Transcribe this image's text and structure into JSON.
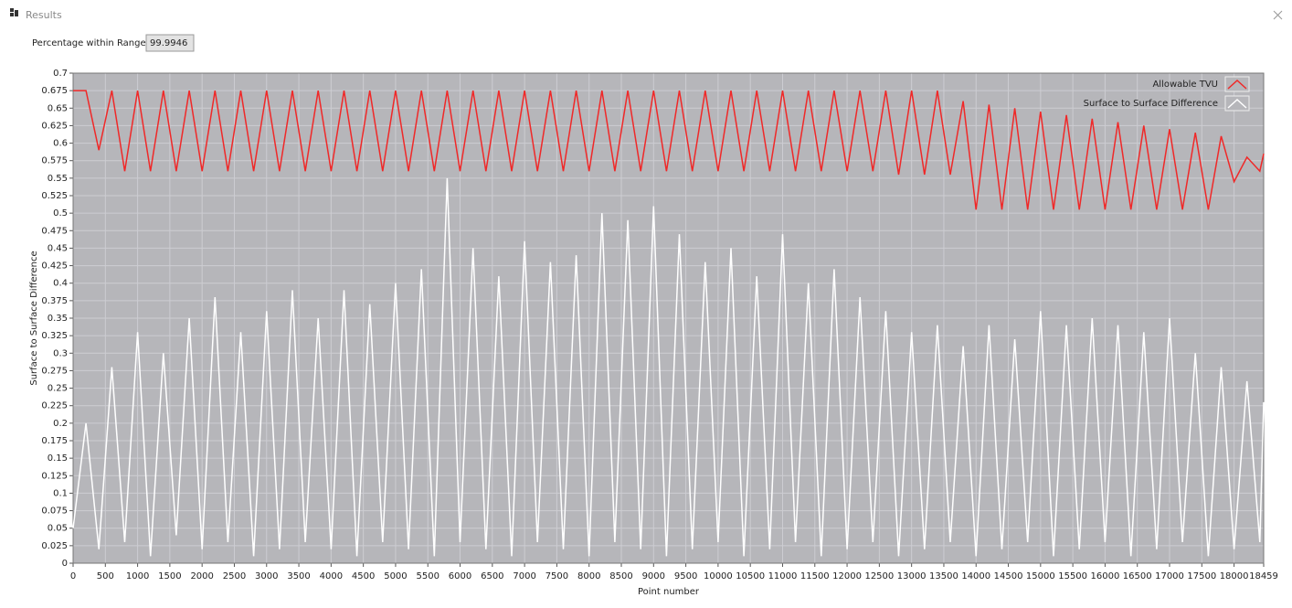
{
  "window": {
    "title": "Results"
  },
  "indicator": {
    "label": "Percentage within Range",
    "value": 99.9946
  },
  "chart_data": {
    "type": "line",
    "xlabel": "Point number",
    "ylabel": "Surface to Surface Difference",
    "xlim": [
      0,
      18459
    ],
    "ylim": [
      0,
      0.7
    ],
    "xticks": [
      0,
      500,
      1000,
      1500,
      2000,
      2500,
      3000,
      3500,
      4000,
      4500,
      5000,
      5500,
      6000,
      6500,
      7000,
      7500,
      8000,
      8500,
      9000,
      9500,
      10000,
      10500,
      11000,
      11500,
      12000,
      12500,
      13000,
      13500,
      14000,
      14500,
      15000,
      15500,
      16000,
      16500,
      17000,
      17500,
      18000,
      18459
    ],
    "yticks": [
      0,
      0.025,
      0.05,
      0.075,
      0.1,
      0.125,
      0.15,
      0.175,
      0.2,
      0.225,
      0.25,
      0.275,
      0.3,
      0.325,
      0.35,
      0.375,
      0.4,
      0.425,
      0.45,
      0.475,
      0.5,
      0.525,
      0.55,
      0.575,
      0.6,
      0.625,
      0.65,
      0.675,
      0.7
    ],
    "grid": true,
    "legend": "top-right",
    "x": [
      0,
      200,
      400,
      600,
      800,
      1000,
      1200,
      1400,
      1600,
      1800,
      2000,
      2200,
      2400,
      2600,
      2800,
      3000,
      3200,
      3400,
      3600,
      3800,
      4000,
      4200,
      4400,
      4600,
      4800,
      5000,
      5200,
      5400,
      5600,
      5800,
      6000,
      6200,
      6400,
      6600,
      6800,
      7000,
      7200,
      7400,
      7600,
      7800,
      8000,
      8200,
      8400,
      8600,
      8800,
      9000,
      9200,
      9400,
      9600,
      9800,
      10000,
      10200,
      10400,
      10600,
      10800,
      11000,
      11200,
      11400,
      11600,
      11800,
      12000,
      12200,
      12400,
      12600,
      12800,
      13000,
      13200,
      13400,
      13600,
      13800,
      14000,
      14200,
      14400,
      14600,
      14800,
      15000,
      15200,
      15400,
      15600,
      15800,
      16000,
      16200,
      16400,
      16600,
      16800,
      17000,
      17200,
      17400,
      17600,
      17800,
      18000,
      18200,
      18400,
      18459
    ],
    "series": [
      {
        "name": "Allowable TVU",
        "color": "#f02828",
        "values": [
          0.675,
          0.675,
          0.59,
          0.675,
          0.56,
          0.675,
          0.56,
          0.675,
          0.56,
          0.675,
          0.56,
          0.675,
          0.56,
          0.675,
          0.56,
          0.675,
          0.56,
          0.675,
          0.56,
          0.675,
          0.56,
          0.675,
          0.56,
          0.675,
          0.56,
          0.675,
          0.56,
          0.675,
          0.56,
          0.675,
          0.56,
          0.675,
          0.56,
          0.675,
          0.56,
          0.675,
          0.56,
          0.675,
          0.56,
          0.675,
          0.56,
          0.675,
          0.56,
          0.675,
          0.56,
          0.675,
          0.56,
          0.675,
          0.56,
          0.675,
          0.56,
          0.675,
          0.56,
          0.675,
          0.56,
          0.675,
          0.56,
          0.675,
          0.56,
          0.675,
          0.56,
          0.675,
          0.56,
          0.675,
          0.555,
          0.675,
          0.555,
          0.675,
          0.555,
          0.66,
          0.505,
          0.655,
          0.505,
          0.65,
          0.505,
          0.645,
          0.505,
          0.64,
          0.505,
          0.635,
          0.505,
          0.63,
          0.505,
          0.625,
          0.505,
          0.62,
          0.505,
          0.615,
          0.505,
          0.61,
          0.545,
          0.58,
          0.56,
          0.585
        ]
      },
      {
        "name": "Surface to Surface Difference",
        "color": "#ffffff",
        "values": [
          0.05,
          0.2,
          0.02,
          0.28,
          0.03,
          0.33,
          0.01,
          0.3,
          0.04,
          0.35,
          0.02,
          0.38,
          0.03,
          0.33,
          0.01,
          0.36,
          0.02,
          0.39,
          0.03,
          0.35,
          0.02,
          0.39,
          0.01,
          0.37,
          0.03,
          0.4,
          0.02,
          0.42,
          0.01,
          0.55,
          0.03,
          0.45,
          0.02,
          0.41,
          0.01,
          0.46,
          0.03,
          0.43,
          0.02,
          0.44,
          0.01,
          0.5,
          0.03,
          0.49,
          0.02,
          0.51,
          0.01,
          0.47,
          0.02,
          0.43,
          0.03,
          0.45,
          0.01,
          0.41,
          0.02,
          0.47,
          0.03,
          0.4,
          0.01,
          0.42,
          0.02,
          0.38,
          0.03,
          0.36,
          0.01,
          0.33,
          0.02,
          0.34,
          0.03,
          0.31,
          0.01,
          0.34,
          0.02,
          0.32,
          0.03,
          0.36,
          0.01,
          0.34,
          0.02,
          0.35,
          0.03,
          0.34,
          0.01,
          0.33,
          0.02,
          0.35,
          0.03,
          0.3,
          0.01,
          0.28,
          0.02,
          0.26,
          0.03,
          0.23
        ]
      }
    ]
  }
}
